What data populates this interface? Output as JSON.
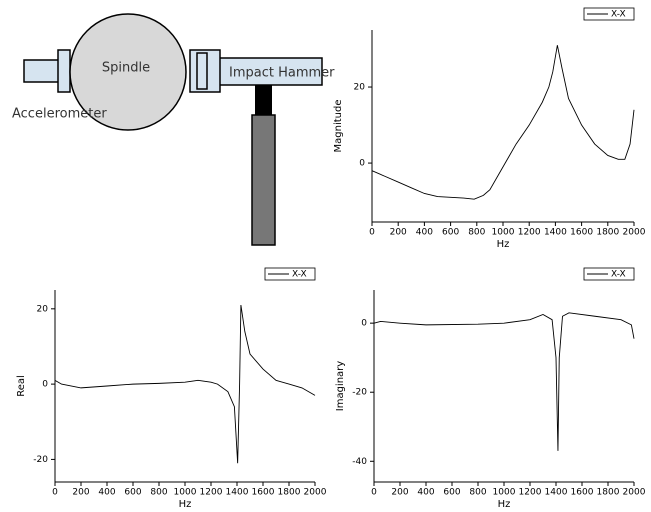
{
  "diagram": {
    "labels": [
      "Spindle",
      "Impact Hammer",
      "Accelerometer"
    ]
  },
  "chart_data": [
    {
      "type": "line",
      "xlabel": "Hz",
      "ylabel": "Magnitude",
      "legend": "upper right",
      "x": [
        0,
        100,
        200,
        300,
        400,
        500,
        600,
        700,
        780,
        850,
        900,
        1000,
        1100,
        1200,
        1300,
        1350,
        1380,
        1415,
        1450,
        1500,
        1600,
        1700,
        1800,
        1880,
        1930,
        1970,
        2000
      ],
      "series": [
        {
          "name": "X-X",
          "color": "#000000",
          "values": [
            -2,
            -3.5,
            -5,
            -6.5,
            -8,
            -8.8,
            -9,
            -9.2,
            -9.5,
            -8.5,
            -7,
            -1,
            5,
            10,
            16,
            20,
            24,
            31,
            25,
            17,
            10,
            5,
            2,
            1,
            1,
            5,
            14
          ]
        }
      ],
      "xlim": [
        0,
        2000
      ],
      "ylim": [
        -15.5,
        35
      ],
      "xticks": [
        0,
        200,
        400,
        600,
        800,
        1000,
        1200,
        1400,
        1600,
        1800,
        2000
      ],
      "yticks": [
        0,
        20
      ]
    },
    {
      "type": "line",
      "xlabel": "Hz",
      "ylabel": "Real",
      "legend": "upper right",
      "x": [
        0,
        50,
        200,
        400,
        600,
        800,
        1000,
        1100,
        1200,
        1250,
        1330,
        1380,
        1405,
        1420,
        1430,
        1460,
        1500,
        1600,
        1700,
        1800,
        1900,
        2000
      ],
      "series": [
        {
          "name": "X-X",
          "color": "#000000",
          "values": [
            1,
            0,
            -1,
            -0.5,
            0,
            0.2,
            0.5,
            1,
            0.5,
            0,
            -2,
            -6,
            -21,
            0,
            21,
            14,
            8,
            4,
            1,
            0,
            -1,
            -3
          ]
        }
      ],
      "xlim": [
        0,
        2000
      ],
      "ylim": [
        -26,
        25
      ],
      "xticks": [
        0,
        200,
        400,
        600,
        800,
        1000,
        1200,
        1400,
        1600,
        1800,
        2000
      ],
      "yticks": [
        -20,
        0,
        20
      ]
    },
    {
      "type": "line",
      "xlabel": "Hz",
      "ylabel": "Imaginary",
      "legend": "upper right",
      "x": [
        0,
        50,
        200,
        400,
        800,
        1000,
        1200,
        1300,
        1370,
        1400,
        1415,
        1425,
        1450,
        1500,
        1700,
        1900,
        1980,
        2000
      ],
      "series": [
        {
          "name": "X-X",
          "color": "#000000",
          "values": [
            0,
            0.5,
            0,
            -0.5,
            -0.3,
            0,
            1,
            2.5,
            1,
            -10,
            -37,
            -10,
            2,
            3,
            2,
            1,
            -0.5,
            -4.5
          ]
        }
      ],
      "xlim": [
        0,
        2000
      ],
      "ylim": [
        -46,
        9.6
      ],
      "xticks": [
        0,
        200,
        400,
        600,
        800,
        1000,
        1200,
        1400,
        1600,
        1800,
        2000
      ],
      "yticks": [
        -40,
        -20,
        0
      ]
    }
  ]
}
